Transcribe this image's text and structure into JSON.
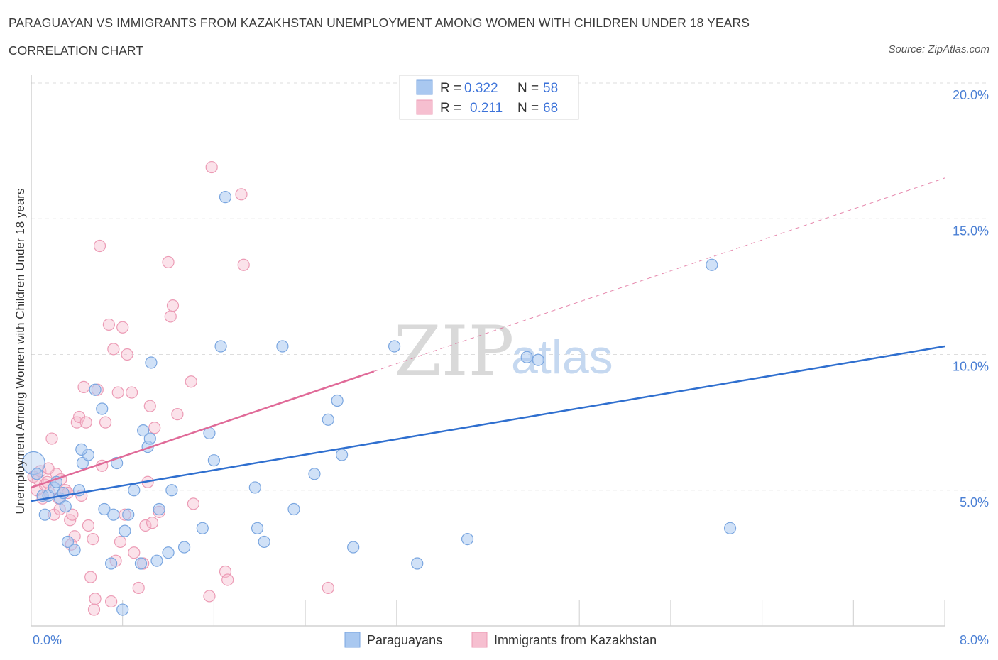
{
  "header": {
    "title": "PARAGUAYAN VS IMMIGRANTS FROM KAZAKHSTAN UNEMPLOYMENT AMONG WOMEN WITH CHILDREN UNDER 18 YEARS",
    "subtitle": "CORRELATION CHART",
    "source": "Source: ZipAtlas.com"
  },
  "watermark": {
    "zip": "ZIP",
    "atlas": "atlas"
  },
  "legend_top": {
    "rows": [
      {
        "r_label": "R =",
        "r_value": "0.322",
        "n_label": "N =",
        "n_value": "58"
      },
      {
        "r_label": "R =",
        "r_value": "0.211",
        "n_label": "N =",
        "n_value": "68"
      }
    ]
  },
  "colors": {
    "blue_fill": "#a9c8f0",
    "blue_stroke": "#7aa6e0",
    "blue_line": "#2f6fcf",
    "pink_fill": "#f6bfd0",
    "pink_stroke": "#ec9bb5",
    "pink_line": "#e06a98",
    "tick_color": "#4a7fd4",
    "grid": "#dddddd"
  },
  "chart_data": {
    "type": "scatter",
    "title": "PARAGUAYAN VS IMMIGRANTS FROM KAZAKHSTAN UNEMPLOYMENT AMONG WOMEN WITH CHILDREN UNDER 18 YEARS",
    "subtitle": "CORRELATION CHART",
    "xlabel": "",
    "ylabel": "Unemployment Among Women with Children Under 18 years",
    "xlim": [
      0,
      8
    ],
    "ylim": [
      0,
      20
    ],
    "x_tick_labels": [
      "0.0%",
      "8.0%"
    ],
    "y_tick_labels": [
      "5.0%",
      "10.0%",
      "15.0%",
      "20.0%"
    ],
    "y_ticks": [
      5,
      10,
      15,
      20
    ],
    "grid": true,
    "legend_position": "top-center",
    "series": [
      {
        "name": "Paraguayans",
        "color": "#a9c8f0",
        "r": 0.322,
        "n": 58,
        "trend": {
          "x0": 0,
          "y0": 4.6,
          "x1": 8,
          "y1": 10.3,
          "style": "solid"
        },
        "points": [
          [
            0.02,
            6.0
          ],
          [
            0.05,
            5.6
          ],
          [
            0.1,
            4.8
          ],
          [
            0.12,
            4.1
          ],
          [
            0.15,
            4.8
          ],
          [
            0.2,
            5.1
          ],
          [
            0.22,
            5.3
          ],
          [
            0.25,
            4.7
          ],
          [
            0.28,
            4.9
          ],
          [
            0.3,
            4.4
          ],
          [
            0.32,
            3.1
          ],
          [
            0.38,
            2.8
          ],
          [
            0.42,
            5.0
          ],
          [
            0.45,
            6.0
          ],
          [
            0.5,
            6.3
          ],
          [
            0.44,
            6.5
          ],
          [
            0.56,
            8.7
          ],
          [
            0.62,
            8.0
          ],
          [
            0.64,
            4.3
          ],
          [
            0.7,
            2.3
          ],
          [
            0.72,
            4.1
          ],
          [
            0.75,
            6.0
          ],
          [
            0.8,
            0.6
          ],
          [
            0.82,
            3.5
          ],
          [
            0.85,
            4.1
          ],
          [
            0.9,
            5.0
          ],
          [
            0.96,
            2.3
          ],
          [
            0.98,
            7.2
          ],
          [
            1.02,
            6.6
          ],
          [
            1.04,
            6.9
          ],
          [
            1.05,
            9.7
          ],
          [
            1.1,
            2.4
          ],
          [
            1.12,
            4.3
          ],
          [
            1.2,
            2.7
          ],
          [
            1.23,
            5.0
          ],
          [
            1.34,
            2.9
          ],
          [
            1.5,
            3.6
          ],
          [
            1.56,
            7.1
          ],
          [
            1.6,
            6.1
          ],
          [
            1.66,
            10.3
          ],
          [
            1.7,
            15.8
          ],
          [
            1.96,
            5.1
          ],
          [
            1.98,
            3.6
          ],
          [
            2.04,
            3.1
          ],
          [
            2.2,
            10.3
          ],
          [
            2.3,
            4.3
          ],
          [
            2.48,
            5.6
          ],
          [
            2.6,
            7.6
          ],
          [
            2.68,
            8.3
          ],
          [
            2.72,
            6.3
          ],
          [
            2.82,
            2.9
          ],
          [
            3.18,
            10.3
          ],
          [
            3.38,
            2.3
          ],
          [
            3.82,
            3.2
          ],
          [
            4.34,
            9.9
          ],
          [
            4.44,
            9.8
          ],
          [
            5.96,
            13.3
          ],
          [
            6.12,
            3.6
          ]
        ]
      },
      {
        "name": "Immigrants from Kazakhstan",
        "color": "#f6bfd0",
        "r": 0.211,
        "n": 68,
        "trend": {
          "x0": 0,
          "y0": 5.1,
          "x1": 8,
          "y1": 16.5,
          "solid_until_x": 3.0,
          "style": "solid-then-dashed"
        },
        "points": [
          [
            0.02,
            5.5
          ],
          [
            0.05,
            5.0
          ],
          [
            0.06,
            5.4
          ],
          [
            0.08,
            5.7
          ],
          [
            0.1,
            4.7
          ],
          [
            0.12,
            5.2
          ],
          [
            0.14,
            5.3
          ],
          [
            0.16,
            4.9
          ],
          [
            0.18,
            6.9
          ],
          [
            0.2,
            4.1
          ],
          [
            0.22,
            5.6
          ],
          [
            0.24,
            4.7
          ],
          [
            0.26,
            5.4
          ],
          [
            0.28,
            4.9
          ],
          [
            0.3,
            5.0
          ],
          [
            0.32,
            4.9
          ],
          [
            0.34,
            3.9
          ],
          [
            0.36,
            4.1
          ],
          [
            0.38,
            3.3
          ],
          [
            0.4,
            7.5
          ],
          [
            0.42,
            7.7
          ],
          [
            0.44,
            4.8
          ],
          [
            0.46,
            8.8
          ],
          [
            0.48,
            7.5
          ],
          [
            0.5,
            3.7
          ],
          [
            0.52,
            1.8
          ],
          [
            0.54,
            3.2
          ],
          [
            0.56,
            1.0
          ],
          [
            0.58,
            8.7
          ],
          [
            0.6,
            14.0
          ],
          [
            0.62,
            5.9
          ],
          [
            0.65,
            7.5
          ],
          [
            0.68,
            11.1
          ],
          [
            0.7,
            0.9
          ],
          [
            0.72,
            10.2
          ],
          [
            0.74,
            2.4
          ],
          [
            0.76,
            8.6
          ],
          [
            0.78,
            3.1
          ],
          [
            0.8,
            11.0
          ],
          [
            0.82,
            4.1
          ],
          [
            0.84,
            10.0
          ],
          [
            0.88,
            8.6
          ],
          [
            0.9,
            2.7
          ],
          [
            0.94,
            1.4
          ],
          [
            0.98,
            2.3
          ],
          [
            1.0,
            3.7
          ],
          [
            1.02,
            5.3
          ],
          [
            1.04,
            8.1
          ],
          [
            1.06,
            3.8
          ],
          [
            1.08,
            7.3
          ],
          [
            1.12,
            4.2
          ],
          [
            1.2,
            13.4
          ],
          [
            1.22,
            11.4
          ],
          [
            1.24,
            11.8
          ],
          [
            1.28,
            7.8
          ],
          [
            1.4,
            9.0
          ],
          [
            1.42,
            4.5
          ],
          [
            1.56,
            1.1
          ],
          [
            1.58,
            16.9
          ],
          [
            1.7,
            2.0
          ],
          [
            1.72,
            1.7
          ],
          [
            1.84,
            15.9
          ],
          [
            1.86,
            13.3
          ],
          [
            2.6,
            1.4
          ],
          [
            0.55,
            0.6
          ],
          [
            0.35,
            3.0
          ],
          [
            0.25,
            4.3
          ],
          [
            0.15,
            5.8
          ]
        ]
      }
    ]
  },
  "bottom_legend": {
    "items": [
      {
        "label": "Paraguayans",
        "color": "#a9c8f0"
      },
      {
        "label": "Immigrants from Kazakhstan",
        "color": "#f6bfd0"
      }
    ]
  }
}
